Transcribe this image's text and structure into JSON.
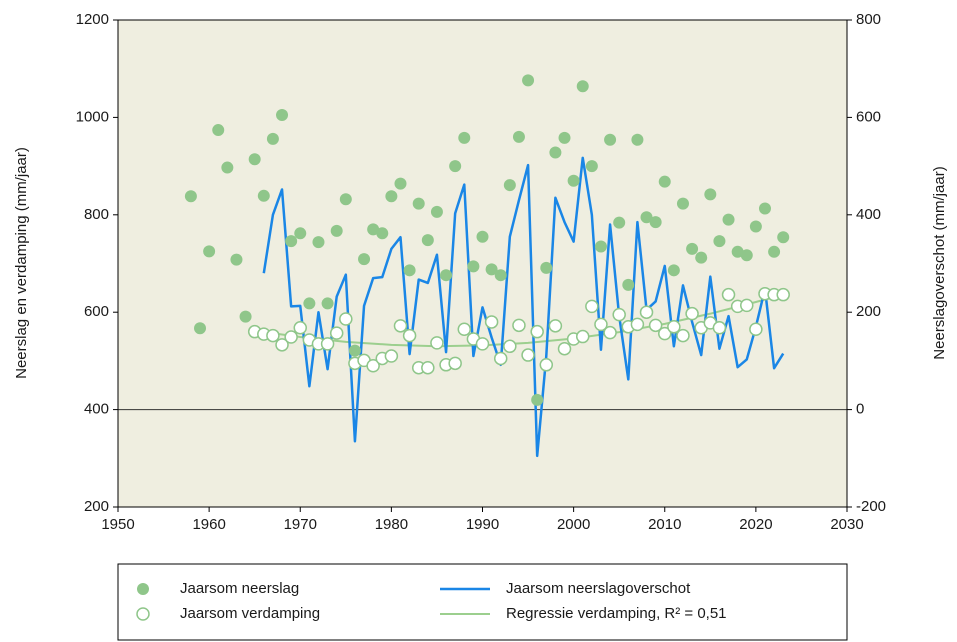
{
  "chart_data": {
    "type": "combo",
    "y_label": "Neerslag en verdamping (mm/jaar)",
    "y2_label": "Neerslagoverschot (mm/jaar)",
    "xlim": [
      1950,
      2030
    ],
    "xticks": [
      1950,
      1960,
      1970,
      1980,
      1990,
      2000,
      2010,
      2020,
      2030
    ],
    "ylim": [
      200,
      1200
    ],
    "yticks": [
      200,
      400,
      600,
      800,
      1000,
      1200
    ],
    "y2lim": [
      -200,
      800
    ],
    "y2ticks": [
      -200,
      0,
      200,
      400,
      600,
      800
    ],
    "background": "#efeee0",
    "series": [
      {
        "name": "Jaarsom neerslag",
        "type": "scatter",
        "marker": "filled",
        "color": "#8fc68a",
        "x": [
          1958,
          1959,
          1960,
          1961,
          1962,
          1963,
          1964,
          1965,
          1966,
          1967,
          1968,
          1969,
          1970,
          1971,
          1972,
          1973,
          1974,
          1975,
          1976,
          1977,
          1978,
          1979,
          1980,
          1981,
          1982,
          1983,
          1984,
          1985,
          1986,
          1987,
          1988,
          1989,
          1990,
          1991,
          1992,
          1993,
          1994,
          1995,
          1996,
          1997,
          1998,
          1999,
          2000,
          2001,
          2002,
          2003,
          2004,
          2005,
          2006,
          2007,
          2008,
          2009,
          2010,
          2011,
          2012,
          2013,
          2014,
          2015,
          2016,
          2017,
          2018,
          2019,
          2020,
          2021,
          2022,
          2023
        ],
        "values": [
          838,
          567,
          725,
          974,
          897,
          708,
          591,
          914,
          839,
          956,
          1005,
          746,
          762,
          618,
          744,
          618,
          767,
          832,
          521,
          709,
          770,
          762,
          838,
          864,
          686,
          823,
          748,
          806,
          676,
          900,
          958,
          694,
          755,
          688,
          676,
          861,
          960,
          1076,
          420,
          691,
          928,
          958,
          870,
          1064,
          900,
          735,
          954,
          784,
          656,
          954,
          795,
          785,
          868,
          686,
          823,
          730,
          712,
          842,
          746,
          790,
          724,
          717,
          776,
          813,
          724,
          754
        ]
      },
      {
        "name": "Jaarsom verdamping",
        "type": "scatter",
        "marker": "open",
        "color": "#8fc68a",
        "x": [
          1965,
          1966,
          1967,
          1968,
          1969,
          1970,
          1971,
          1972,
          1973,
          1974,
          1975,
          1976,
          1977,
          1978,
          1979,
          1980,
          1981,
          1982,
          1983,
          1984,
          1985,
          1986,
          1987,
          1988,
          1989,
          1990,
          1991,
          1992,
          1993,
          1994,
          1995,
          1996,
          1997,
          1998,
          1999,
          2000,
          2001,
          2002,
          2003,
          2004,
          2005,
          2006,
          2007,
          2008,
          2009,
          2010,
          2011,
          2012,
          2013,
          2014,
          2015,
          2016,
          2017,
          2018,
          2019,
          2020,
          2021,
          2022,
          2023
        ],
        "values": [
          560,
          555,
          552,
          533,
          549,
          568,
          543,
          535,
          535,
          557,
          586,
          495,
          501,
          490,
          505,
          510,
          572,
          552,
          486,
          486,
          537,
          492,
          495,
          565,
          545,
          535,
          580,
          505,
          530,
          573,
          512,
          560,
          492,
          572,
          525,
          545,
          550,
          612,
          575,
          558,
          595,
          570,
          575,
          600,
          573,
          556,
          570,
          552,
          597,
          568,
          578,
          568,
          636,
          612,
          614,
          565,
          638,
          636,
          636
        ]
      },
      {
        "name": "Jaarsom neerslagoverschot",
        "type": "line",
        "axis": "y2",
        "color": "#1a86e6",
        "width": 2.5,
        "x": [
          1966,
          1967,
          1968,
          1969,
          1970,
          1971,
          1972,
          1973,
          1974,
          1975,
          1976,
          1977,
          1978,
          1979,
          1980,
          1981,
          1982,
          1983,
          1984,
          1985,
          1986,
          1987,
          1988,
          1989,
          1990,
          1991,
          1992,
          1993,
          1994,
          1995,
          1996,
          1997,
          1998,
          1999,
          2000,
          2001,
          2002,
          2003,
          2004,
          2005,
          2006,
          2007,
          2008,
          2009,
          2010,
          2011,
          2012,
          2013,
          2014,
          2015,
          2016,
          2017,
          2018,
          2019,
          2020,
          2021,
          2022,
          2023
        ],
        "values": [
          280,
          400,
          452,
          212,
          213,
          48,
          200,
          83,
          232,
          277,
          -65,
          213,
          270,
          272,
          330,
          354,
          114,
          267,
          260,
          318,
          118,
          403,
          462,
          110,
          210,
          148,
          92,
          355,
          430,
          502,
          -95,
          110,
          435,
          385,
          345,
          517,
          400,
          123,
          380,
          192,
          62,
          385,
          205,
          222,
          295,
          130,
          255,
          180,
          112,
          273,
          125,
          192,
          87,
          103,
          170,
          248,
          85,
          115
        ]
      },
      {
        "name": "Regressie verdamping, R² = 0,51",
        "type": "line",
        "color": "#9ccf8e",
        "width": 2,
        "x": [
          1965,
          1970,
          1975,
          1980,
          1985,
          1990,
          1995,
          2000,
          2005,
          2010,
          2015,
          2020,
          2023
        ],
        "values": [
          562,
          549,
          539,
          533,
          530,
          532,
          537,
          546,
          559,
          576,
          597,
          621,
          636
        ]
      }
    ]
  }
}
